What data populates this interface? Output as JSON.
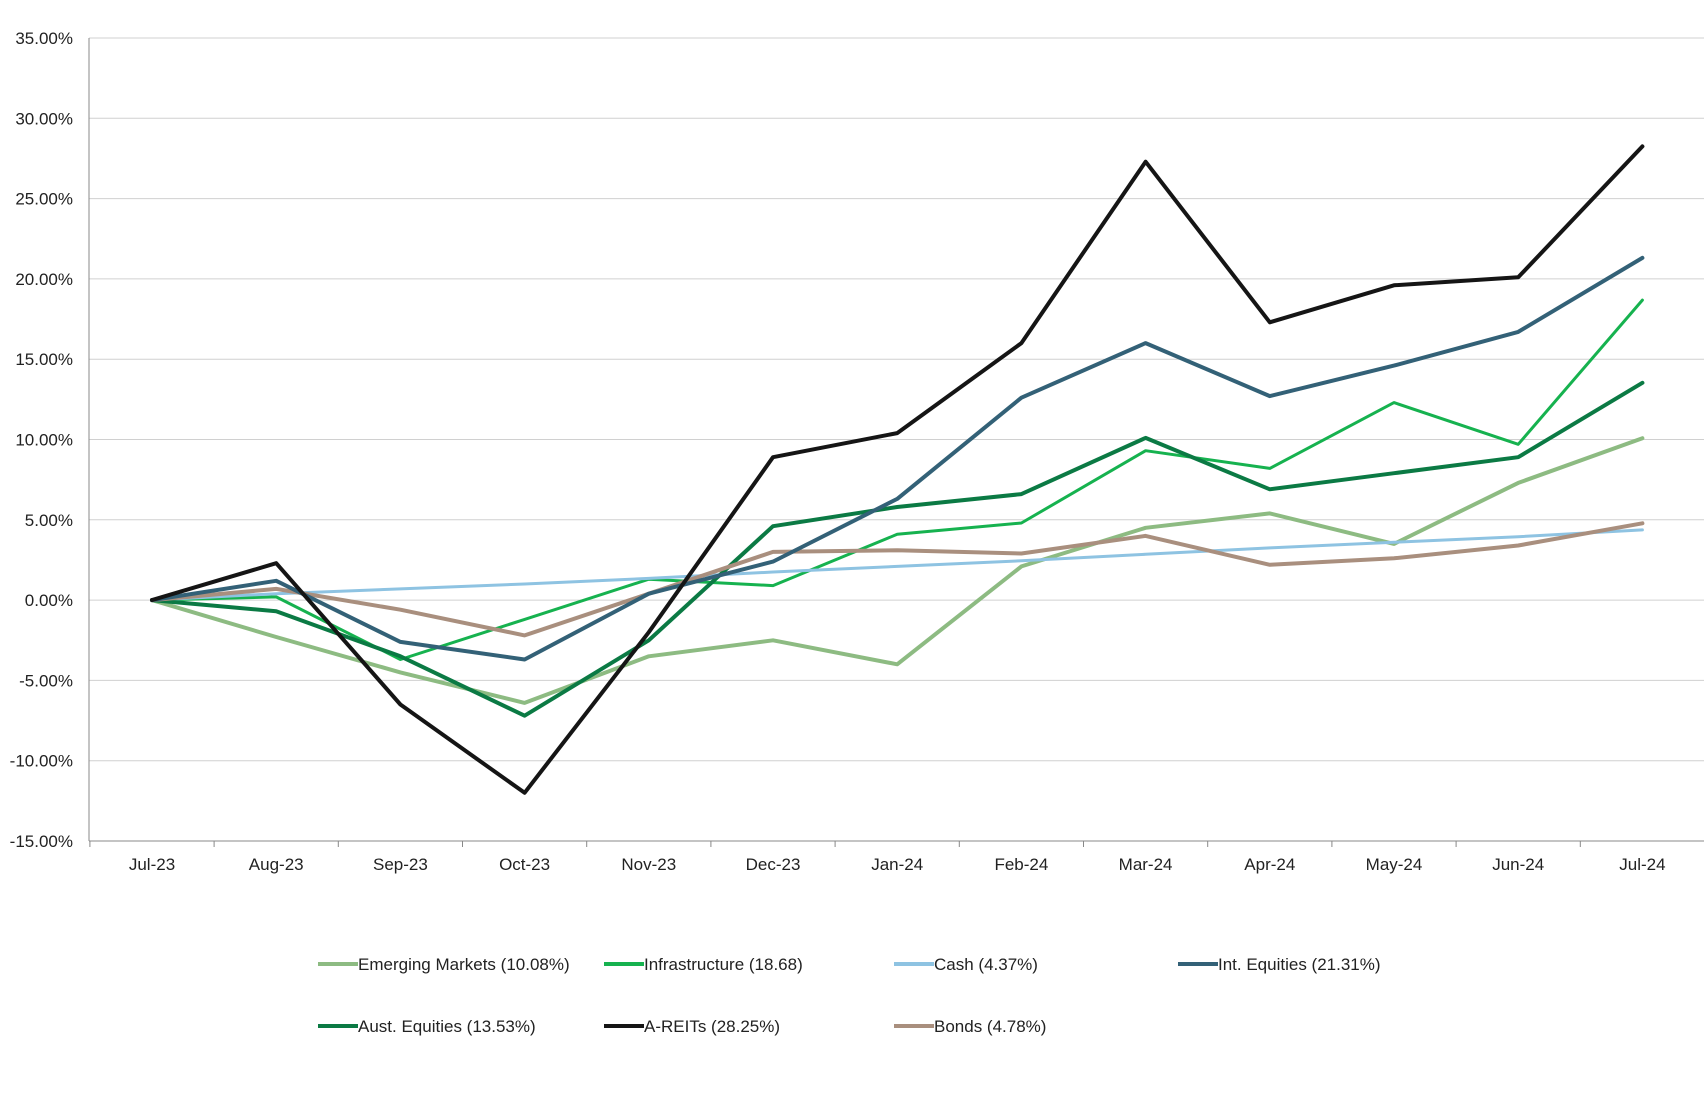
{
  "chart_data": {
    "type": "line",
    "title": "",
    "xlabel": "",
    "ylabel": "",
    "categories": [
      "Jul-23",
      "Aug-23",
      "Sep-23",
      "Oct-23",
      "Nov-23",
      "Dec-23",
      "Jan-24",
      "Feb-24",
      "Mar-24",
      "Apr-24",
      "May-24",
      "Jun-24",
      "Jul-24"
    ],
    "ylim": [
      -15,
      35
    ],
    "yticks": [
      35,
      30,
      25,
      20,
      15,
      10,
      5,
      0,
      -5,
      -10,
      -15
    ],
    "ytick_labels": [
      "35.00%",
      "30.00%",
      "25.00%",
      "20.00%",
      "15.00%",
      "10.00%",
      "5.00%",
      "0.00%",
      "-5.00%",
      "-10.00%",
      "-15.00%"
    ],
    "grid": true,
    "legend_position": "bottom",
    "series": [
      {
        "name": "Emerging Markets (10.08%)",
        "color": "#8dbb82",
        "values": [
          0,
          -2.3,
          -4.5,
          -6.4,
          -3.5,
          -2.5,
          -4.0,
          2.1,
          4.5,
          5.4,
          3.5,
          7.3,
          10.08
        ]
      },
      {
        "name": "Infrastructure (18.68)",
        "color": "#16b24f",
        "values": [
          0,
          0.2,
          -3.7,
          -1.2,
          1.3,
          0.9,
          4.1,
          4.8,
          9.3,
          8.2,
          12.3,
          9.7,
          18.68
        ]
      },
      {
        "name": "Cash (4.37%)",
        "color": "#8ec3e2",
        "values": [
          0,
          0.4,
          0.7,
          1.0,
          1.35,
          1.75,
          2.1,
          2.45,
          2.85,
          3.25,
          3.6,
          3.95,
          4.37
        ]
      },
      {
        "name": "Int. Equities (21.31%)",
        "color": "#336177",
        "values": [
          0,
          1.2,
          -2.6,
          -3.7,
          0.4,
          2.4,
          6.3,
          12.6,
          16.0,
          12.7,
          14.6,
          16.7,
          21.31
        ]
      },
      {
        "name": "Aust. Equities (13.53%)",
        "color": "#0b7a44",
        "values": [
          0,
          -0.7,
          -3.5,
          -7.2,
          -2.5,
          4.6,
          5.8,
          6.6,
          10.1,
          6.9,
          7.9,
          8.9,
          13.53
        ]
      },
      {
        "name": "A-REITs (28.25%)",
        "color": "#151515",
        "values": [
          0,
          2.3,
          -6.5,
          -12.0,
          -2.0,
          8.9,
          10.4,
          16.0,
          27.3,
          17.3,
          19.6,
          20.1,
          28.25
        ]
      },
      {
        "name": "Bonds (4.78%)",
        "color": "#a98f7e",
        "values": [
          0,
          0.7,
          -0.6,
          -2.2,
          0.4,
          3.0,
          3.1,
          2.9,
          4.0,
          2.2,
          2.6,
          3.4,
          4.78
        ]
      }
    ]
  }
}
